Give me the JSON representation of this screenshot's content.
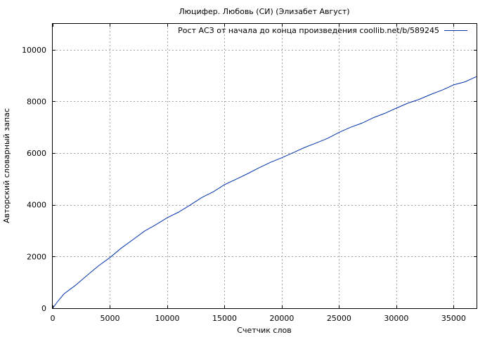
{
  "chart_data": {
    "type": "line",
    "title": "Люцифер. Любовь (СИ) (Элизабет Август)",
    "xlabel": "Счетчик слов",
    "ylabel": "Авторский словарный запас",
    "xlim": [
      0,
      37000
    ],
    "ylim": [
      0,
      11000
    ],
    "xticks": [
      0,
      5000,
      10000,
      15000,
      20000,
      25000,
      30000,
      35000
    ],
    "yticks": [
      0,
      2000,
      4000,
      6000,
      8000,
      10000
    ],
    "xtick_labels": [
      "0",
      "5000",
      "10000",
      "15000",
      "20000",
      "25000",
      "30000",
      "35000"
    ],
    "ytick_labels": [
      "0",
      "2000",
      "4000",
      "6000",
      "8000",
      "10000"
    ],
    "grid": true,
    "legend_position": "top-right",
    "series": [
      {
        "name": "Рост АСЗ от начала до конца произведения coollib.net/b/589245",
        "color": "#0033aa",
        "x": [
          0,
          500,
          1000,
          2000,
          3000,
          4000,
          5000,
          6000,
          7000,
          8000,
          9000,
          10000,
          11000,
          12000,
          13000,
          14000,
          15000,
          16000,
          17000,
          18000,
          19000,
          20000,
          21000,
          22000,
          23000,
          24000,
          25000,
          26000,
          27000,
          28000,
          29000,
          30000,
          31000,
          32000,
          33000,
          34000,
          35000,
          36000,
          37000
        ],
        "y": [
          0,
          300,
          560,
          890,
          1270,
          1640,
          1960,
          2330,
          2650,
          2980,
          3230,
          3500,
          3720,
          3990,
          4280,
          4500,
          4780,
          4990,
          5200,
          5430,
          5640,
          5820,
          6020,
          6220,
          6390,
          6570,
          6800,
          7000,
          7160,
          7370,
          7540,
          7740,
          7930,
          8080,
          8270,
          8440,
          8640,
          8760,
          8960
        ]
      }
    ]
  }
}
